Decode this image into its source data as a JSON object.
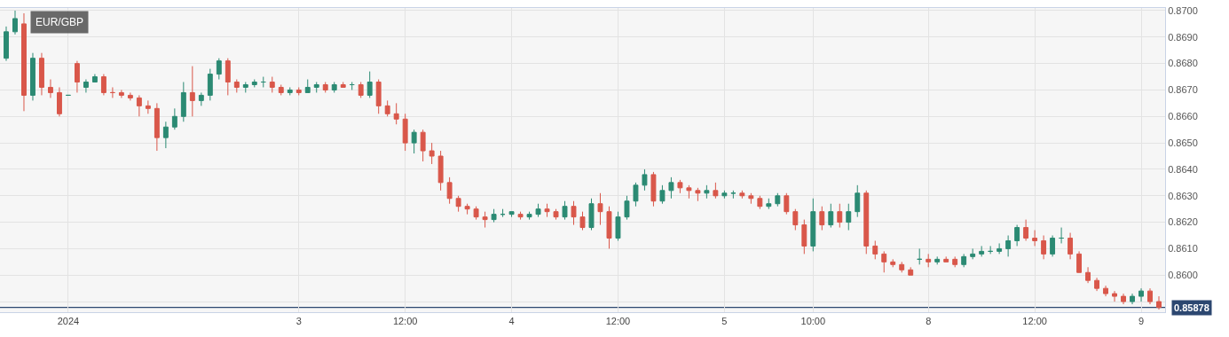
{
  "chart_data": {
    "type": "candlestick",
    "title": "EUR/GBP",
    "categories": [
      null,
      null,
      null,
      null,
      null,
      null,
      null,
      "2024",
      null,
      null,
      null,
      null,
      null,
      null,
      null,
      null,
      null,
      null,
      null,
      null,
      null,
      null,
      null,
      null,
      null,
      null,
      null,
      null,
      null,
      null,
      null,
      null,
      null,
      "3",
      null,
      null,
      null,
      null,
      null,
      null,
      null,
      null,
      null,
      null,
      null,
      "12:00",
      null,
      null,
      null,
      null,
      null,
      null,
      null,
      null,
      null,
      null,
      null,
      "4",
      null,
      null,
      null,
      null,
      null,
      null,
      null,
      null,
      null,
      null,
      null,
      "12:00",
      null,
      null,
      null,
      null,
      null,
      null,
      null,
      null,
      null,
      null,
      null,
      "5",
      null,
      null,
      null,
      null,
      null,
      null,
      null,
      null,
      null,
      "10:00",
      null,
      null,
      null,
      null,
      null,
      null,
      null,
      null,
      null,
      null,
      null,
      null,
      "8",
      null,
      null,
      null,
      null,
      null,
      null,
      null,
      null,
      null,
      null,
      null,
      "12:00",
      null,
      null,
      null,
      null,
      null,
      null,
      null,
      null,
      null,
      null,
      null,
      "9",
      null,
      null
    ],
    "ohlc": [
      [
        0.8682,
        0.8694,
        0.8681,
        0.8692
      ],
      [
        0.8692,
        0.87,
        0.8691,
        0.8697
      ],
      [
        0.8695,
        0.8699,
        0.8662,
        0.8668
      ],
      [
        0.8668,
        0.8684,
        0.8666,
        0.8682
      ],
      [
        0.8682,
        0.8684,
        0.8668,
        0.8671
      ],
      [
        0.8671,
        0.8674,
        0.8667,
        0.8669
      ],
      [
        0.8669,
        0.8671,
        0.866,
        0.8661
      ],
      [
        0.8668,
        0.8668,
        0.8668,
        0.8668
      ],
      [
        0.868,
        0.8681,
        0.8669,
        0.8673
      ],
      [
        0.8671,
        0.8674,
        0.8669,
        0.8673
      ],
      [
        0.8673,
        0.8676,
        0.8673,
        0.8675
      ],
      [
        0.8675,
        0.8676,
        0.8668,
        0.8669
      ],
      [
        0.8669,
        0.8671,
        0.8667,
        0.8669
      ],
      [
        0.8669,
        0.867,
        0.8667,
        0.8668
      ],
      [
        0.8668,
        0.8669,
        0.8666,
        0.8667
      ],
      [
        0.8667,
        0.8668,
        0.866,
        0.8664
      ],
      [
        0.8664,
        0.8666,
        0.8661,
        0.8663
      ],
      [
        0.8663,
        0.8665,
        0.8647,
        0.8652
      ],
      [
        0.8652,
        0.8658,
        0.8648,
        0.8656
      ],
      [
        0.8656,
        0.8663,
        0.8655,
        0.866
      ],
      [
        0.866,
        0.8673,
        0.8658,
        0.8669
      ],
      [
        0.8669,
        0.8679,
        0.866,
        0.8666
      ],
      [
        0.8666,
        0.8669,
        0.8664,
        0.8668
      ],
      [
        0.8668,
        0.8678,
        0.8666,
        0.8676
      ],
      [
        0.8676,
        0.8682,
        0.8674,
        0.8681
      ],
      [
        0.8681,
        0.8682,
        0.8668,
        0.8673
      ],
      [
        0.8673,
        0.8674,
        0.8669,
        0.8671
      ],
      [
        0.8671,
        0.8673,
        0.8669,
        0.8672
      ],
      [
        0.8672,
        0.8674,
        0.8671,
        0.8673
      ],
      [
        0.8673,
        0.8675,
        0.8671,
        0.8673
      ],
      [
        0.8673,
        0.8675,
        0.8669,
        0.8671
      ],
      [
        0.8671,
        0.8672,
        0.8668,
        0.8669
      ],
      [
        0.8669,
        0.8671,
        0.8668,
        0.867
      ],
      [
        0.867,
        0.8671,
        0.8668,
        0.8669
      ],
      [
        0.8669,
        0.8674,
        0.8669,
        0.8671
      ],
      [
        0.8671,
        0.8673,
        0.8669,
        0.8672
      ],
      [
        0.8672,
        0.8673,
        0.8669,
        0.867
      ],
      [
        0.867,
        0.8673,
        0.8669,
        0.8672
      ],
      [
        0.8672,
        0.8673,
        0.8671,
        0.8671
      ],
      [
        0.8672,
        0.8673,
        0.867,
        0.8672
      ],
      [
        0.8672,
        0.8673,
        0.8667,
        0.8668
      ],
      [
        0.8668,
        0.8677,
        0.8667,
        0.8673
      ],
      [
        0.8673,
        0.8674,
        0.8661,
        0.8664
      ],
      [
        0.8664,
        0.8666,
        0.866,
        0.8661
      ],
      [
        0.8661,
        0.8665,
        0.8657,
        0.8659
      ],
      [
        0.8659,
        0.8661,
        0.8647,
        0.865
      ],
      [
        0.865,
        0.8655,
        0.8646,
        0.8654
      ],
      [
        0.8654,
        0.8655,
        0.8643,
        0.8647
      ],
      [
        0.8647,
        0.865,
        0.8642,
        0.8645
      ],
      [
        0.8645,
        0.8647,
        0.8632,
        0.8635
      ],
      [
        0.8635,
        0.8637,
        0.8627,
        0.8629
      ],
      [
        0.8629,
        0.863,
        0.8624,
        0.8626
      ],
      [
        0.8626,
        0.8627,
        0.8623,
        0.8625
      ],
      [
        0.8625,
        0.8626,
        0.8621,
        0.8622
      ],
      [
        0.8622,
        0.8624,
        0.8618,
        0.8621
      ],
      [
        0.8621,
        0.8625,
        0.862,
        0.8623
      ],
      [
        0.8623,
        0.8625,
        0.8622,
        0.8623
      ],
      [
        0.8623,
        0.8624,
        0.8622,
        0.8624
      ],
      [
        0.8623,
        0.8624,
        0.8621,
        0.8622
      ],
      [
        0.8622,
        0.8624,
        0.8621,
        0.8623
      ],
      [
        0.8623,
        0.8627,
        0.8622,
        0.8625
      ],
      [
        0.8625,
        0.8627,
        0.8622,
        0.8624
      ],
      [
        0.8624,
        0.8625,
        0.8621,
        0.8622
      ],
      [
        0.8622,
        0.8628,
        0.8621,
        0.8626
      ],
      [
        0.8626,
        0.8628,
        0.8619,
        0.8622
      ],
      [
        0.8622,
        0.8624,
        0.8617,
        0.8618
      ],
      [
        0.8618,
        0.8629,
        0.8617,
        0.8627
      ],
      [
        0.8627,
        0.8631,
        0.8619,
        0.8624
      ],
      [
        0.8624,
        0.8626,
        0.861,
        0.8614
      ],
      [
        0.8614,
        0.8624,
        0.8613,
        0.8622
      ],
      [
        0.8622,
        0.863,
        0.8621,
        0.8628
      ],
      [
        0.8628,
        0.8635,
        0.8626,
        0.8634
      ],
      [
        0.8634,
        0.864,
        0.8632,
        0.8638
      ],
      [
        0.8638,
        0.8639,
        0.8626,
        0.8628
      ],
      [
        0.8628,
        0.8634,
        0.8627,
        0.8632
      ],
      [
        0.8632,
        0.8637,
        0.8629,
        0.8635
      ],
      [
        0.8635,
        0.8636,
        0.8631,
        0.8633
      ],
      [
        0.8633,
        0.8634,
        0.8629,
        0.8632
      ],
      [
        0.8632,
        0.8633,
        0.8628,
        0.8631
      ],
      [
        0.8631,
        0.8634,
        0.8629,
        0.8632
      ],
      [
        0.8632,
        0.8635,
        0.8629,
        0.863
      ],
      [
        0.863,
        0.8632,
        0.8629,
        0.8631
      ],
      [
        0.8631,
        0.8632,
        0.8629,
        0.8631
      ],
      [
        0.8631,
        0.8632,
        0.8629,
        0.863
      ],
      [
        0.863,
        0.8631,
        0.8627,
        0.8629
      ],
      [
        0.8629,
        0.863,
        0.8625,
        0.8626
      ],
      [
        0.8626,
        0.8629,
        0.8625,
        0.8627
      ],
      [
        0.8627,
        0.8631,
        0.8626,
        0.863
      ],
      [
        0.863,
        0.8631,
        0.8623,
        0.8624
      ],
      [
        0.8624,
        0.8625,
        0.8617,
        0.8619
      ],
      [
        0.8619,
        0.8621,
        0.8608,
        0.8611
      ],
      [
        0.8611,
        0.8629,
        0.8609,
        0.8624
      ],
      [
        0.8624,
        0.8626,
        0.8617,
        0.8619
      ],
      [
        0.8619,
        0.8627,
        0.8618,
        0.8624
      ],
      [
        0.8624,
        0.8627,
        0.8618,
        0.862
      ],
      [
        0.862,
        0.8627,
        0.8617,
        0.8624
      ],
      [
        0.8624,
        0.8634,
        0.8622,
        0.8631
      ],
      [
        0.8631,
        0.8632,
        0.8608,
        0.8611
      ],
      [
        0.8611,
        0.8613,
        0.8606,
        0.8608
      ],
      [
        0.8608,
        0.8609,
        0.8601,
        0.8605
      ],
      [
        0.8605,
        0.8606,
        0.8603,
        0.8604
      ],
      [
        0.8604,
        0.8605,
        0.8601,
        0.8602
      ],
      [
        0.8602,
        0.8603,
        0.86,
        0.86
      ],
      [
        0.8606,
        0.861,
        0.8604,
        0.8606
      ],
      [
        0.8606,
        0.8608,
        0.8603,
        0.8605
      ],
      [
        0.8605,
        0.8607,
        0.8604,
        0.8606
      ],
      [
        0.8606,
        0.8607,
        0.8605,
        0.8605
      ],
      [
        0.8606,
        0.8607,
        0.8603,
        0.8604
      ],
      [
        0.8604,
        0.8608,
        0.8603,
        0.8607
      ],
      [
        0.8607,
        0.861,
        0.8606,
        0.8608
      ],
      [
        0.8608,
        0.8611,
        0.8607,
        0.8609
      ],
      [
        0.8609,
        0.8611,
        0.8608,
        0.8609
      ],
      [
        0.8609,
        0.8612,
        0.8608,
        0.861
      ],
      [
        0.861,
        0.8615,
        0.8607,
        0.8613
      ],
      [
        0.8613,
        0.8619,
        0.8611,
        0.8618
      ],
      [
        0.8618,
        0.8621,
        0.8613,
        0.8614
      ],
      [
        0.8614,
        0.8617,
        0.8611,
        0.8613
      ],
      [
        0.8613,
        0.8615,
        0.8606,
        0.8608
      ],
      [
        0.8608,
        0.8615,
        0.8607,
        0.8614
      ],
      [
        0.8614,
        0.8618,
        0.8612,
        0.8614
      ],
      [
        0.8614,
        0.8616,
        0.8606,
        0.8608
      ],
      [
        0.8608,
        0.8609,
        0.8601,
        0.8601
      ],
      [
        0.8601,
        0.8603,
        0.8597,
        0.8598
      ],
      [
        0.8598,
        0.8599,
        0.8594,
        0.8595
      ],
      [
        0.8595,
        0.8596,
        0.8592,
        0.8593
      ],
      [
        0.8593,
        0.8594,
        0.859,
        0.8592
      ],
      [
        0.8592,
        0.8593,
        0.8589,
        0.859
      ],
      [
        0.859,
        0.8593,
        0.8589,
        0.8592
      ],
      [
        0.8592,
        0.8595,
        0.859,
        0.8594
      ],
      [
        0.8594,
        0.8595,
        0.8589,
        0.859
      ],
      [
        0.859,
        0.8592,
        0.8587,
        0.85878
      ]
    ],
    "ylim": [
      0.8586,
      0.8701
    ],
    "yticks": [
      {
        "value": 0.859,
        "label": null
      },
      {
        "value": 0.86,
        "label": "0.8600"
      },
      {
        "value": 0.861,
        "label": "0.8610"
      },
      {
        "value": 0.862,
        "label": "0.8620"
      },
      {
        "value": 0.863,
        "label": "0.8630"
      },
      {
        "value": 0.864,
        "label": "0.8640"
      },
      {
        "value": 0.865,
        "label": "0.8650"
      },
      {
        "value": 0.866,
        "label": "0.8660"
      },
      {
        "value": 0.867,
        "label": "0.8670"
      },
      {
        "value": 0.868,
        "label": "0.8680"
      },
      {
        "value": 0.869,
        "label": "0.8690"
      },
      {
        "value": 0.87,
        "label": "0.8700"
      }
    ],
    "ref_lines": [
      {
        "axis": "y",
        "value": 0.85878,
        "label": "0.85878",
        "color": "#2c4770"
      }
    ],
    "grid": true
  }
}
